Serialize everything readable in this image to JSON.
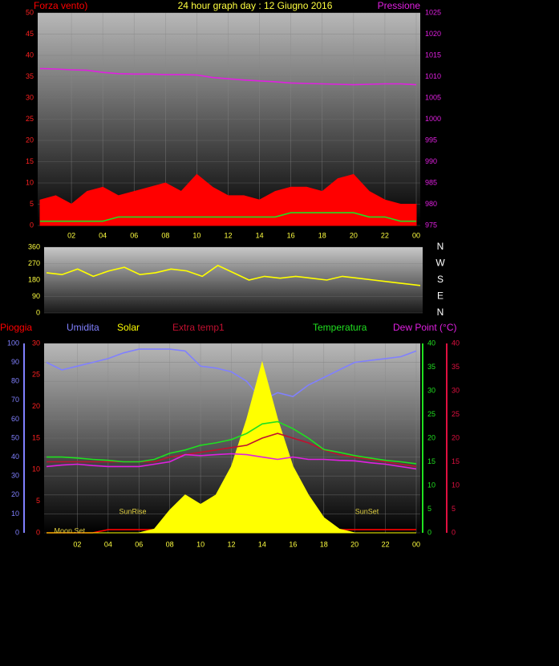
{
  "chart_data": [
    {
      "type": "line",
      "title": "24 hour graph day : 12 Giugno 2016",
      "x": [
        0,
        1,
        2,
        3,
        4,
        5,
        6,
        7,
        8,
        9,
        10,
        11,
        12,
        13,
        14,
        15,
        16,
        17,
        18,
        19,
        20,
        21,
        22,
        23,
        24
      ],
      "xlim": [
        0,
        24
      ],
      "xticks": [
        {
          "value": 2,
          "label": "02"
        },
        {
          "value": 4,
          "label": "04"
        },
        {
          "value": 6,
          "label": "06"
        },
        {
          "value": 8,
          "label": "08"
        },
        10,
        12,
        14,
        16,
        18,
        20,
        22,
        {
          "value": 24,
          "label": "00"
        }
      ],
      "ylim": [
        0,
        50
      ],
      "yticks": [
        0,
        5,
        10,
        15,
        20,
        25,
        30,
        35,
        40,
        45,
        50
      ],
      "y2lim": [
        975,
        1025
      ],
      "y2ticks": [
        975,
        980,
        985,
        990,
        995,
        1000,
        1005,
        1010,
        1015,
        1020,
        1025
      ],
      "axis_colors": {
        "y": "#ff2020",
        "y2": "#e020e0",
        "x": "#ffff40"
      },
      "grid": true,
      "series": [
        {
          "name": "Forza vento)",
          "color": "#ff0000",
          "style": "area",
          "axis": "y",
          "values": [
            6,
            7,
            5,
            8,
            9,
            7,
            8,
            9,
            10,
            8,
            12,
            9,
            7,
            7,
            6,
            8,
            9,
            9,
            8,
            11,
            12,
            8,
            6,
            5,
            5
          ]
        },
        {
          "color": "#20e020",
          "style": "line",
          "axis": "y",
          "values": [
            1,
            1,
            1,
            1,
            1,
            2,
            2,
            2,
            2,
            2,
            2,
            2,
            2,
            2,
            2,
            2,
            3,
            3,
            3,
            3,
            3,
            2,
            2,
            1,
            1
          ]
        },
        {
          "name": "Pressione",
          "color": "#e020e0",
          "style": "line",
          "axis": "y2",
          "values": [
            1011.9,
            1011.8,
            1011.6,
            1011.5,
            1011.0,
            1010.7,
            1010.6,
            1010.6,
            1010.5,
            1010.5,
            1010.4,
            1009.8,
            1009.5,
            1009.2,
            1009.0,
            1008.8,
            1008.5,
            1008.4,
            1008.3,
            1008.2,
            1008.1,
            1008.2,
            1008.3,
            1008.3,
            1008.1
          ]
        }
      ]
    },
    {
      "type": "line",
      "x": [
        0,
        1,
        2,
        3,
        4,
        5,
        6,
        7,
        8,
        9,
        10,
        11,
        12,
        13,
        14,
        15,
        16,
        17,
        18,
        19,
        20,
        21,
        22,
        23,
        24
      ],
      "xlim": [
        0,
        24
      ],
      "ylim": [
        0,
        360
      ],
      "yticks": [
        0,
        90,
        180,
        270,
        360
      ],
      "y2lim": [
        0,
        360
      ],
      "y2ticks": [
        {
          "value": 360,
          "label": "N"
        },
        {
          "value": 270,
          "label": "W"
        },
        {
          "value": 180,
          "label": "S"
        },
        {
          "value": 90,
          "label": "E"
        },
        {
          "value": 0,
          "label": "N"
        }
      ],
      "axis_colors": {
        "y": "#ffff40",
        "y2": "#ffffff"
      },
      "grid": true,
      "series": [
        {
          "color": "#ffff00",
          "style": "line",
          "axis": "y",
          "values": [
            220,
            210,
            240,
            200,
            230,
            250,
            210,
            220,
            240,
            230,
            200,
            260,
            220,
            180,
            200,
            190,
            200,
            190,
            180,
            200,
            190,
            180,
            170,
            160,
            150
          ]
        }
      ]
    },
    {
      "type": "line",
      "x": [
        0,
        1,
        2,
        3,
        4,
        5,
        6,
        7,
        8,
        9,
        10,
        11,
        12,
        13,
        14,
        15,
        16,
        17,
        18,
        19,
        20,
        21,
        22,
        23,
        24
      ],
      "xlim": [
        0,
        24
      ],
      "xticks": [
        {
          "value": 2,
          "label": "02"
        },
        {
          "value": 4,
          "label": "04"
        },
        {
          "value": 6,
          "label": "06"
        },
        {
          "value": 8,
          "label": "08"
        },
        10,
        12,
        14,
        16,
        18,
        20,
        22,
        {
          "value": 24,
          "label": "00"
        }
      ],
      "ylim": [
        0,
        100
      ],
      "yticks": [
        0,
        10,
        20,
        30,
        40,
        50,
        60,
        70,
        80,
        90,
        100
      ],
      "y3lim": [
        0,
        30
      ],
      "y3ticks": [
        0,
        5,
        10,
        15,
        20,
        25,
        30
      ],
      "y2lim": [
        0,
        40
      ],
      "y2ticks": [
        0,
        5,
        10,
        15,
        20,
        25,
        30,
        35,
        40
      ],
      "y4lim": [
        0,
        40
      ],
      "y4ticks": [
        0,
        5,
        10,
        15,
        20,
        25,
        30,
        35,
        40
      ],
      "axis_colors": {
        "y": "#8080ff",
        "y3": "#ff2020",
        "y2": "#20e020",
        "y4": "#e01040",
        "x": "#ffff40"
      },
      "grid": true,
      "series": [
        {
          "name": "Pioggia",
          "color": "#ff0000",
          "style": "line",
          "axis": "y3",
          "values": [
            0,
            0,
            0,
            0,
            0.5,
            0.5,
            0.5,
            0.5,
            0.5,
            0.5,
            0.5,
            0.5,
            0.5,
            0.5,
            0.5,
            0.5,
            0.5,
            0.5,
            0.5,
            0.5,
            0.5,
            0.5,
            0.5,
            0.5,
            0.5
          ]
        },
        {
          "name": "Umidita",
          "color": "#8080ff",
          "style": "line",
          "axis": "y",
          "values": [
            90,
            86,
            88,
            90,
            92,
            95,
            97,
            97,
            97,
            96,
            88,
            87,
            85,
            80,
            70,
            74,
            72,
            78,
            82,
            86,
            90,
            91,
            92,
            93,
            96
          ]
        },
        {
          "name": "Solar",
          "color": "#ffff00",
          "style": "area",
          "axis": "y",
          "values": [
            0,
            0,
            0,
            0,
            0,
            0,
            0,
            2,
            12,
            20,
            15,
            20,
            35,
            60,
            90,
            60,
            35,
            20,
            8,
            2,
            0,
            0,
            0,
            0,
            0
          ]
        },
        {
          "name": "Extra temp1",
          "color": "#c01030",
          "style": "line",
          "axis": "y4",
          "values": [
            15,
            15,
            15,
            15,
            15,
            15,
            15,
            15,
            16,
            16.5,
            17,
            17.5,
            18,
            18.5,
            20,
            21,
            20,
            19,
            17.5,
            16.5,
            16,
            15.5,
            15,
            14.5,
            14
          ]
        },
        {
          "name": "Temperatura",
          "color": "#20e020",
          "style": "line",
          "axis": "y2",
          "values": [
            16,
            16,
            15.8,
            15.5,
            15.3,
            15,
            15,
            15.5,
            16.8,
            17.5,
            18.5,
            19,
            19.7,
            21,
            23,
            23.5,
            22,
            20,
            17.6,
            17,
            16.3,
            15.8,
            15.3,
            15,
            14.6
          ]
        },
        {
          "name": "Dew Point (°C)",
          "color": "#e020e0",
          "style": "line",
          "axis": "y2",
          "values": [
            14,
            14.3,
            14.5,
            14.2,
            14,
            14,
            14,
            14.5,
            15,
            16.5,
            16.3,
            16.5,
            16.7,
            16.5,
            16,
            15.5,
            16,
            15.5,
            15.5,
            15.3,
            15.2,
            14.8,
            14.5,
            14,
            13.5
          ]
        }
      ],
      "annotations": [
        {
          "text": "Moon Set",
          "x": 1.5
        },
        {
          "text": "SunRise",
          "x": 5.6
        },
        {
          "text": "SunSet",
          "x": 20.8
        }
      ]
    }
  ]
}
